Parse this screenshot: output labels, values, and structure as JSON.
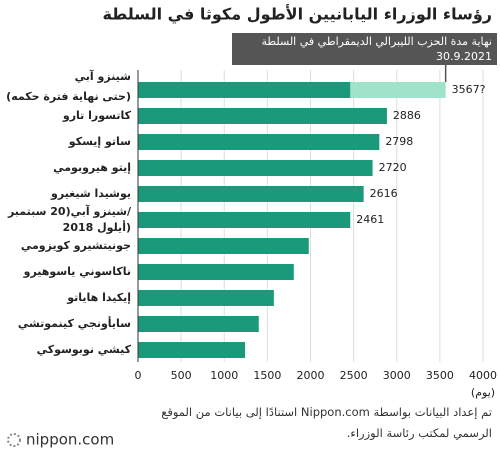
{
  "chart_data": {
    "type": "bar",
    "orientation": "horizontal",
    "title": "رؤساء الوزراء اليابانيين الأطول مكوثا في السلطة",
    "annotation": [
      "نهاية مدة الحزب الليبرالي الديمقراطي في السلطة",
      "30.9.2021"
    ],
    "categories": [
      [
        "شينزو آبي",
        "(حتى نهاية فترة حكمه)"
      ],
      [
        "كاتسورا تارو"
      ],
      [
        "ساتو إيسكو"
      ],
      [
        "إيتو هيروبومي"
      ],
      [
        "يوشيدا شيغيرو"
      ],
      [
        "شينزو آبي(20 سبتمبر/",
        "أيلول 2018)"
      ],
      [
        "جونيتشيرو كويزومي"
      ],
      [
        "ناكاسوني ياسوهيرو"
      ],
      [
        "إيكيدا هاياتو"
      ],
      [
        "سايأونجي كينموتشي"
      ],
      [
        "كيشي نوبوسوكي"
      ]
    ],
    "values": [
      3567,
      2886,
      2798,
      2720,
      2616,
      2461,
      1980,
      1806,
      1575,
      1400,
      1241
    ],
    "value_labels": [
      "3567?",
      "2886",
      "2798",
      "2720",
      "2616",
      "2461",
      null,
      null,
      null,
      null,
      null
    ],
    "elapsed": [
      2461,
      null,
      null,
      null,
      null,
      null,
      null,
      null,
      null,
      null,
      null
    ],
    "color": "#1a9a7a",
    "projection_color": "#9fe3c9",
    "annotation_color": "#555555",
    "xlim": [
      0,
      4000
    ],
    "xticks": [
      0,
      500,
      1000,
      1500,
      2000,
      2500,
      3000,
      3500,
      4000
    ],
    "xlabel": "(يوم)",
    "grid": true,
    "source": "تم إعداد البيانات بواسطة Nippon.com استنادًا إلى بيانات من الموقع الرسمي لمكتب رئاسة الوزراء.",
    "logo": "nippon.com"
  }
}
